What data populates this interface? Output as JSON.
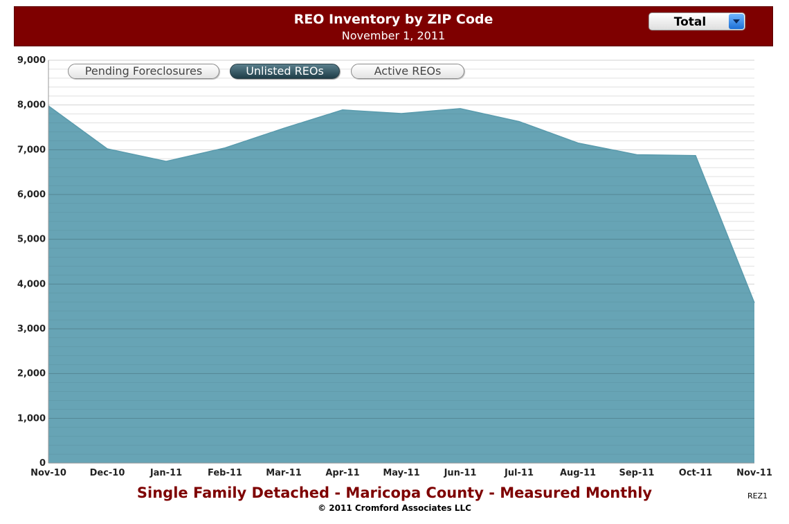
{
  "header": {
    "title": "REO Inventory by ZIP Code",
    "subtitle": "November 1, 2011"
  },
  "selector": {
    "value": "Total",
    "icon": "chevron-down-icon",
    "accent": "#1c6fd6"
  },
  "tabs": [
    {
      "label": "Pending Foreclosures",
      "active": false
    },
    {
      "label": "Unlisted REOs",
      "active": true
    },
    {
      "label": "Active REOs",
      "active": false
    }
  ],
  "chart_data": {
    "type": "area",
    "categories": [
      "Nov-10",
      "Dec-10",
      "Jan-11",
      "Feb-11",
      "Mar-11",
      "Apr-11",
      "May-11",
      "Jun-11",
      "Jul-11",
      "Aug-11",
      "Sep-11",
      "Oct-11",
      "Nov-11"
    ],
    "series": [
      {
        "values": [
          7980,
          7020,
          6740,
          7040,
          7480,
          7890,
          7810,
          7920,
          7630,
          7150,
          6890,
          6870,
          3580
        ]
      }
    ],
    "yticks": [
      "0",
      "1,000",
      "2,000",
      "3,000",
      "4,000",
      "5,000",
      "6,000",
      "7,000",
      "8,000",
      "9,000"
    ],
    "ylim": [
      0,
      9000
    ],
    "ystep": 1000,
    "grid": true,
    "fill_color": "#67a4b5",
    "stroke_color": "#5a9bad"
  },
  "footer": {
    "title": "Single Family Detached - Maricopa County - Measured Monthly",
    "copyright": "© 2011 Cromford Associates LLC",
    "code": "REZ1"
  },
  "colors": {
    "header_bg": "#7e0000",
    "footer_title": "#7e0000"
  }
}
